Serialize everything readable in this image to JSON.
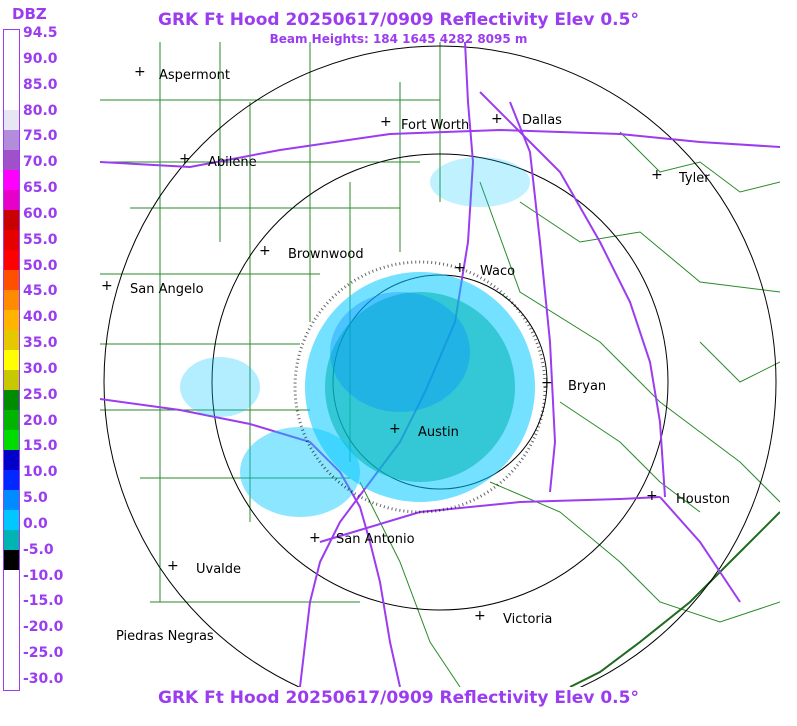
{
  "title": "GRK Ft Hood 20250617/0909 Reflectivity Elev 0.5°",
  "subtitle": "Beam Heights: 184 1645 4282 8095 m",
  "legend": {
    "unit": "DBZ",
    "ticks": [
      "94.5",
      "90.0",
      "85.0",
      "80.0",
      "75.0",
      "70.0",
      "65.0",
      "60.0",
      "55.0",
      "50.0",
      "45.0",
      "40.0",
      "35.0",
      "30.0",
      "25.0",
      "20.0",
      "15.0",
      "10.0",
      "5.0",
      "0.0",
      "-5.0",
      "-10.0",
      "-15.0",
      "-20.0",
      "-25.0",
      "-30.0"
    ],
    "colors": [
      "#ffffff",
      "#ffffff",
      "#ffffff",
      "#ffffff",
      "#e6e6f5",
      "#b48cdc",
      "#a050c8",
      "#ff00ff",
      "#e600c8",
      "#c80000",
      "#e60000",
      "#ff0000",
      "#ff5000",
      "#ff8c00",
      "#ffb400",
      "#e6c800",
      "#ffff00",
      "#c8c800",
      "#008c00",
      "#00b400",
      "#00dc00",
      "#0000c8",
      "#0028ff",
      "#008cff",
      "#00c8ff",
      "#00b4b4",
      "#000000",
      "#ffffff",
      "#ffffff",
      "#ffffff",
      "#ffffff",
      "#ffffff",
      "#ffffff"
    ]
  },
  "cities": [
    {
      "name": "Aspermont"
    },
    {
      "name": "Fort Worth"
    },
    {
      "name": "Dallas"
    },
    {
      "name": "Abilene"
    },
    {
      "name": "Tyler"
    },
    {
      "name": "Brownwood"
    },
    {
      "name": "Waco"
    },
    {
      "name": "San Angelo"
    },
    {
      "name": "Bryan"
    },
    {
      "name": "Austin"
    },
    {
      "name": "Houston"
    },
    {
      "name": "San Antonio"
    },
    {
      "name": "Uvalde"
    },
    {
      "name": "Victoria"
    },
    {
      "name": "Piedras Negras"
    }
  ]
}
